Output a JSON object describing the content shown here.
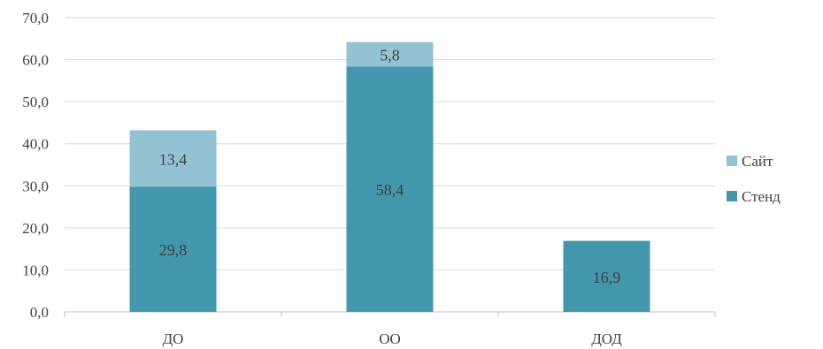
{
  "chart_data": {
    "type": "bar",
    "stacked": true,
    "title": "",
    "xlabel": "",
    "ylabel": "",
    "categories": [
      "ДО",
      "ОО",
      "ДОД"
    ],
    "series": [
      {
        "name": "Стенд",
        "values": [
          29.8,
          58.4,
          16.9
        ],
        "labels": [
          "29,8",
          "58,4",
          "16,9"
        ],
        "color": "#4297AD"
      },
      {
        "name": "Сайт",
        "values": [
          13.4,
          5.8,
          null
        ],
        "labels": [
          "13,4",
          "5,8",
          ""
        ],
        "color": "#93C3D3"
      }
    ],
    "ylim": [
      0,
      70
    ],
    "yticks": [
      0,
      10,
      20,
      30,
      40,
      50,
      60,
      70
    ],
    "ytick_labels": [
      "0,0",
      "10,0",
      "20,0",
      "30,0",
      "40,0",
      "50,0",
      "60,0",
      "70,0"
    ],
    "grid": true,
    "legend_position": "right",
    "legend_order": [
      "Сайт",
      "Стенд"
    ]
  }
}
